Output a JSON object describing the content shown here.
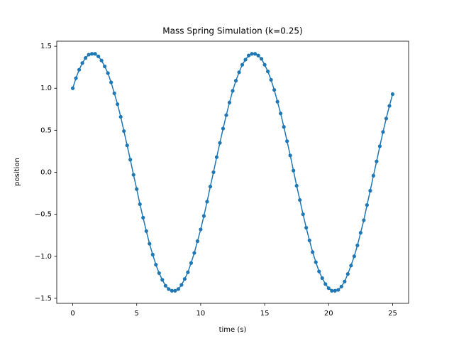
{
  "chart_data": {
    "type": "line",
    "title": "Mass Spring Simulation (k=0.25)",
    "x_label": "time (s)",
    "y_label": "position",
    "x": [
      0,
      0.25,
      0.5,
      0.75,
      1,
      1.25,
      1.5,
      1.75,
      2,
      2.25,
      2.5,
      2.75,
      3,
      3.25,
      3.5,
      3.75,
      4,
      4.25,
      4.5,
      4.75,
      5,
      5.25,
      5.5,
      5.75,
      6,
      6.25,
      6.5,
      6.75,
      7,
      7.25,
      7.5,
      7.75,
      8,
      8.25,
      8.5,
      8.75,
      9,
      9.25,
      9.5,
      9.75,
      10,
      10.25,
      10.5,
      10.75,
      11,
      11.25,
      11.5,
      11.75,
      12,
      12.25,
      12.5,
      12.75,
      13,
      13.25,
      13.5,
      13.75,
      14,
      14.25,
      14.5,
      14.75,
      15,
      15.25,
      15.5,
      15.75,
      16,
      16.25,
      16.5,
      16.75,
      17,
      17.25,
      17.5,
      17.75,
      18,
      18.25,
      18.5,
      18.75,
      19,
      19.25,
      19.5,
      19.75,
      20,
      20.25,
      20.5,
      20.75,
      21,
      21.25,
      21.5,
      21.75,
      22,
      22.25,
      22.5,
      22.75,
      23,
      23.25,
      23.5,
      23.75,
      24,
      24.25,
      24.5,
      24.75,
      25
    ],
    "series": [
      {
        "color": "#1f77b4",
        "values": [
          1.0,
          1.12,
          1.22,
          1.3,
          1.36,
          1.4,
          1.41,
          1.41,
          1.38,
          1.33,
          1.26,
          1.18,
          1.07,
          0.94,
          0.81,
          0.66,
          0.49,
          0.32,
          0.15,
          -0.03,
          -0.2,
          -0.38,
          -0.54,
          -0.7,
          -0.85,
          -0.98,
          -1.1,
          -1.2,
          -1.28,
          -1.35,
          -1.39,
          -1.41,
          -1.41,
          -1.39,
          -1.34,
          -1.27,
          -1.19,
          -1.08,
          -0.96,
          -0.82,
          -0.68,
          -0.52,
          -0.35,
          -0.17,
          0.0,
          0.18,
          0.35,
          0.52,
          0.68,
          0.83,
          0.97,
          1.09,
          1.19,
          1.28,
          1.34,
          1.39,
          1.41,
          1.41,
          1.39,
          1.35,
          1.28,
          1.2,
          1.1,
          0.98,
          0.84,
          0.7,
          0.54,
          0.37,
          0.2,
          0.02,
          -0.16,
          -0.33,
          -0.5,
          -0.66,
          -0.81,
          -0.95,
          -1.07,
          -1.18,
          -1.26,
          -1.33,
          -1.38,
          -1.41,
          -1.41,
          -1.4,
          -1.36,
          -1.3,
          -1.21,
          -1.11,
          -1.0,
          -0.87,
          -0.72,
          -0.57,
          -0.39,
          -0.22,
          -0.04,
          0.13,
          0.31,
          0.48,
          0.64,
          0.79,
          0.93
        ]
      }
    ],
    "xlim": [
      -1.25,
      26.25
    ],
    "ylim": [
      -1.56,
      1.56
    ],
    "xticks": [
      0,
      5,
      10,
      15,
      20,
      25
    ],
    "yticks": [
      {
        "value": -1.5,
        "label": "−1.5"
      },
      {
        "value": -1,
        "label": "−1.0"
      },
      {
        "value": -0.5,
        "label": "−0.5"
      },
      {
        "value": 0,
        "label": "0.0"
      },
      0.5,
      {
        "value": 1,
        "label": "1.0"
      },
      1.5
    ]
  }
}
